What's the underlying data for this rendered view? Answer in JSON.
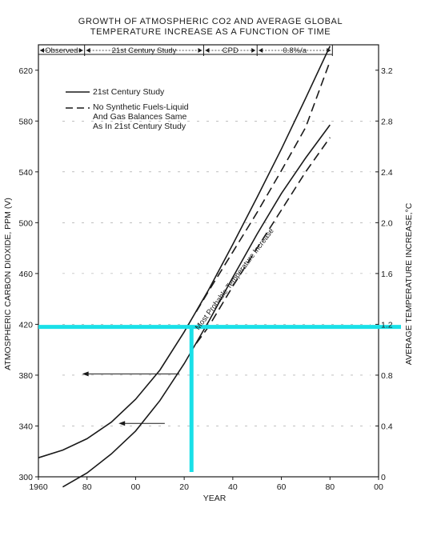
{
  "chart_data": {
    "type": "line",
    "title_line1": "GROWTH OF ATMOSPHERIC CO2 AND AVERAGE GLOBAL",
    "title_line2": "TEMPERATURE INCREASE AS A FUNCTION OF TIME",
    "xlabel": "YEAR",
    "ylabel_left": "ATMOSPHERIC CARBON DIOXIDE, PPM (V)",
    "ylabel_right": "AVERAGE TEMPERATURE INCREASE,°C",
    "x_tick_labels": [
      "1960",
      "80",
      "00",
      "20",
      "40",
      "60",
      "80",
      "00"
    ],
    "x_ticks": [
      1960,
      1980,
      2000,
      2020,
      2040,
      2060,
      2080,
      2100
    ],
    "xlim": [
      1960,
      2100
    ],
    "ylim_left": [
      300,
      640
    ],
    "y_ticks_left": [
      300,
      340,
      380,
      420,
      460,
      500,
      540,
      580,
      620
    ],
    "ylim_right": [
      0.0,
      3.4
    ],
    "y_ticks_right": [
      0,
      0.4,
      0.8,
      1.2,
      1.6,
      2.0,
      2.4,
      2.8,
      3.2
    ],
    "y_tick_labels_right": [
      "0",
      "0.4",
      "0.8",
      "1.2",
      "1.6",
      "2.0",
      "2.4",
      "2.8",
      "3.2"
    ],
    "period_bar": [
      {
        "label": "Observed",
        "from": 1960,
        "to": 1979
      },
      {
        "label": "21st Century Study",
        "from": 1979,
        "to": 2028
      },
      {
        "label": "CPD",
        "from": 2028,
        "to": 2050
      },
      {
        "label": "0.8%/a",
        "from": 2050,
        "to": 2081
      }
    ],
    "legend": {
      "solid": "21st Century Study",
      "dashed_line1": "No Synthetic Fuels-Liquid",
      "dashed_line2": "And Gas Balances Same",
      "dashed_line3": "As In 21st Century Study"
    },
    "annotation": "Most Probable Temperature Increase",
    "series": [
      {
        "name": "21st Century Study",
        "axis": "left",
        "style": "solid",
        "x": [
          1960,
          1970,
          1980,
          1990,
          2000,
          2010,
          2020,
          2030,
          2040,
          2050,
          2060,
          2070,
          2080
        ],
        "y": [
          315,
          321,
          330,
          343,
          361,
          384,
          414,
          447,
          483,
          520,
          558,
          598,
          639
        ]
      },
      {
        "name": "No Synthetic Fuels-Liquid And Gas Balances Same As In 21st Century Study",
        "axis": "left",
        "style": "dashed",
        "x": [
          2025,
          2030,
          2040,
          2050,
          2060,
          2070,
          2080
        ],
        "y": [
          430,
          446,
          477,
          508,
          541,
          575,
          627
        ]
      },
      {
        "name": "Most Probable Temperature Increase",
        "axis": "right",
        "style": "solid",
        "x": [
          1970,
          1980,
          1990,
          2000,
          2010,
          2020,
          2030,
          2040,
          2050,
          2060,
          2070,
          2080
        ],
        "y": [
          -0.08,
          0.03,
          0.18,
          0.36,
          0.6,
          0.89,
          1.22,
          1.57,
          1.91,
          2.23,
          2.51,
          2.77
        ]
      },
      {
        "name": "Most Probable Temperature Increase (no synthetic fuels)",
        "axis": "right",
        "style": "dashed",
        "x": [
          2025,
          2030,
          2040,
          2050,
          2060,
          2070,
          2080
        ],
        "y": [
          1.05,
          1.18,
          1.5,
          1.8,
          2.1,
          2.4,
          2.67
        ]
      }
    ],
    "reference_lines": {
      "horizontal_ppm": 418,
      "vertical_year": 2023,
      "color": "#19e0e8"
    }
  }
}
